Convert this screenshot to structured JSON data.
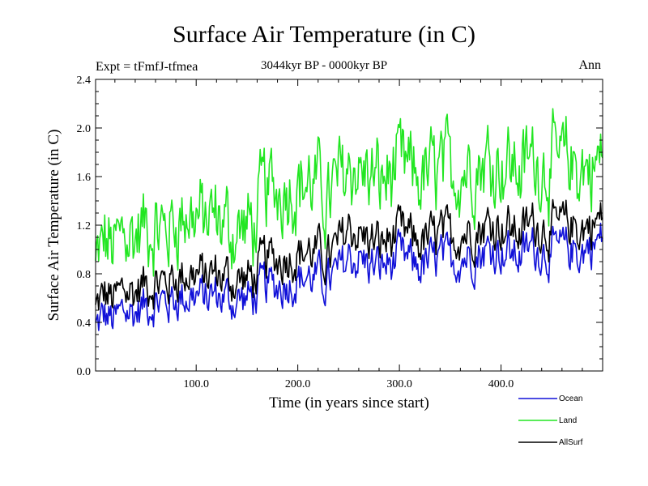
{
  "header": {
    "title": "Surface Air Temperature (in C)",
    "subtitle": "3044kyr BP - 0000kyr BP",
    "expt": "Expt = tFmfJ-tfmea",
    "period": "Ann"
  },
  "chart_data": {
    "type": "line",
    "title": "Surface Air Temperature (in C)",
    "xlabel": "Time (in years since start)",
    "ylabel": "Surface Air Temperature (in C)",
    "xlim": [
      1,
      500
    ],
    "ylim": [
      0.0,
      2.4
    ],
    "x_ticks": [
      100.0,
      200.0,
      300.0,
      400.0
    ],
    "x_tick_labels": [
      "100.0",
      "200.0",
      "300.0",
      "400.0"
    ],
    "y_ticks": [
      0.0,
      0.4,
      0.8,
      1.2,
      1.6,
      2.0,
      2.4
    ],
    "y_tick_labels": [
      "0.0",
      "0.4",
      "0.8",
      "1.2",
      "1.6",
      "2.0",
      "2.4"
    ],
    "legend_position": "bottom-right outside",
    "series": [
      {
        "name": "Ocean",
        "color": "#1010d8",
        "x": [
          1,
          10,
          20,
          30,
          40,
          50,
          60,
          70,
          80,
          90,
          100,
          110,
          120,
          130,
          140,
          150,
          160,
          165,
          170,
          180,
          190,
          200,
          210,
          220,
          230,
          240,
          250,
          260,
          270,
          280,
          290,
          300,
          310,
          320,
          330,
          340,
          350,
          360,
          370,
          380,
          390,
          400,
          410,
          420,
          430,
          440,
          450,
          460,
          470,
          480,
          490,
          500
        ],
        "values": [
          0.35,
          0.45,
          0.4,
          0.5,
          0.48,
          0.55,
          0.58,
          0.56,
          0.6,
          0.62,
          0.62,
          0.6,
          0.63,
          0.6,
          0.58,
          0.6,
          0.62,
          0.68,
          0.7,
          0.7,
          0.74,
          0.76,
          0.78,
          0.75,
          0.73,
          0.8,
          0.94,
          0.92,
          0.88,
          0.85,
          0.88,
          0.92,
          0.9,
          0.86,
          0.88,
          0.92,
          0.9,
          0.94,
          0.96,
          0.98,
          1.0,
          1.0,
          0.97,
          0.95,
          1.02,
          1.0,
          0.97,
          0.99,
          1.0,
          0.98,
          1.05,
          1.08
        ]
      },
      {
        "name": "Land",
        "color": "#22e622",
        "x": [
          1,
          10,
          20,
          30,
          40,
          50,
          60,
          70,
          80,
          90,
          100,
          110,
          120,
          130,
          140,
          150,
          160,
          165,
          170,
          180,
          190,
          200,
          210,
          220,
          230,
          240,
          250,
          260,
          270,
          280,
          290,
          300,
          310,
          320,
          330,
          340,
          350,
          360,
          370,
          380,
          390,
          400,
          410,
          420,
          430,
          440,
          450,
          460,
          470,
          480,
          490,
          500
        ],
        "values": [
          0.85,
          1.05,
          1.0,
          1.15,
          1.1,
          1.2,
          1.18,
          1.15,
          1.25,
          1.3,
          1.28,
          1.22,
          1.25,
          1.2,
          1.15,
          1.18,
          1.2,
          1.45,
          1.48,
          1.5,
          1.55,
          1.55,
          1.55,
          1.5,
          1.4,
          1.55,
          1.7,
          1.65,
          1.6,
          1.55,
          1.6,
          1.65,
          1.62,
          1.58,
          1.6,
          1.65,
          1.62,
          1.68,
          1.7,
          1.72,
          1.75,
          1.72,
          1.7,
          1.65,
          1.75,
          1.72,
          1.68,
          1.7,
          1.7,
          1.68,
          1.68,
          1.75
        ]
      },
      {
        "name": "AllSurf",
        "color": "#000000",
        "x": [
          1,
          10,
          20,
          30,
          40,
          50,
          60,
          70,
          80,
          90,
          100,
          110,
          120,
          130,
          140,
          150,
          160,
          165,
          170,
          180,
          190,
          200,
          210,
          220,
          230,
          240,
          250,
          260,
          270,
          280,
          290,
          300,
          310,
          320,
          330,
          340,
          350,
          360,
          370,
          380,
          390,
          400,
          410,
          420,
          430,
          440,
          450,
          460,
          470,
          480,
          490,
          500
        ],
        "values": [
          0.5,
          0.62,
          0.58,
          0.68,
          0.65,
          0.72,
          0.74,
          0.72,
          0.78,
          0.8,
          0.8,
          0.77,
          0.8,
          0.77,
          0.74,
          0.76,
          0.78,
          0.88,
          0.92,
          0.92,
          0.96,
          0.97,
          0.99,
          0.96,
          0.92,
          1.02,
          1.2,
          1.12,
          1.08,
          1.04,
          1.08,
          1.12,
          1.1,
          1.06,
          1.08,
          1.12,
          1.1,
          1.14,
          1.16,
          1.18,
          1.22,
          1.2,
          1.17,
          1.14,
          1.22,
          1.2,
          1.16,
          1.19,
          1.2,
          1.17,
          1.22,
          1.25
        ]
      }
    ]
  }
}
